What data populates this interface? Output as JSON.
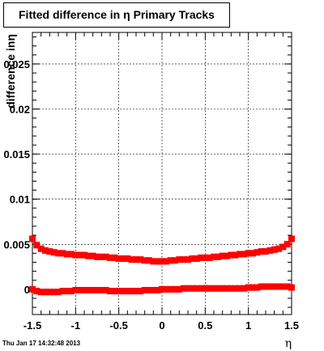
{
  "chart_data": {
    "type": "scatter",
    "title": "Fitted difference in η  Primary Tracks",
    "xlabel": "η",
    "ylabel": "difference inη",
    "xlim": [
      -1.5,
      1.5
    ],
    "ylim": [
      -0.0028,
      0.0285
    ],
    "x_ticks": [
      "-1.5",
      "-1",
      "-0.5",
      "0",
      "0.5",
      "1",
      "1.5"
    ],
    "y_ticks": [
      "0",
      "0.005",
      "0.01",
      "0.015",
      "0.02",
      "0.025"
    ],
    "grid": true,
    "series": [
      {
        "color": "#ff0000",
        "x": [
          -1.5,
          -1.45,
          -1.4,
          -1.35,
          -1.3,
          -1.25,
          -1.2,
          -1.15,
          -1.1,
          -1.05,
          -1.0,
          -0.95,
          -0.9,
          -0.85,
          -0.8,
          -0.75,
          -0.7,
          -0.65,
          -0.6,
          -0.55,
          -0.5,
          -0.45,
          -0.4,
          -0.35,
          -0.3,
          -0.25,
          -0.2,
          -0.15,
          -0.1,
          -0.05,
          0.0,
          0.05,
          0.1,
          0.15,
          0.2,
          0.25,
          0.3,
          0.35,
          0.4,
          0.45,
          0.5,
          0.55,
          0.6,
          0.65,
          0.7,
          0.75,
          0.8,
          0.85,
          0.9,
          0.95,
          1.0,
          1.05,
          1.1,
          1.15,
          1.2,
          1.25,
          1.3,
          1.35,
          1.4,
          1.45,
          1.5
        ],
        "y": [
          0.0056,
          0.0049,
          0.0045,
          0.0043,
          0.0042,
          0.0041,
          0.004,
          0.004,
          0.0039,
          0.0039,
          0.0038,
          0.0038,
          0.0038,
          0.0037,
          0.0037,
          0.0036,
          0.0036,
          0.0036,
          0.0035,
          0.0035,
          0.0034,
          0.0034,
          0.0034,
          0.0033,
          0.0033,
          0.0033,
          0.0032,
          0.0032,
          0.0031,
          0.0031,
          0.0031,
          0.0031,
          0.0032,
          0.0032,
          0.0033,
          0.0033,
          0.0033,
          0.0034,
          0.0034,
          0.0035,
          0.0035,
          0.0035,
          0.0036,
          0.0036,
          0.0037,
          0.0037,
          0.0038,
          0.0038,
          0.0039,
          0.0039,
          0.004,
          0.004,
          0.0041,
          0.0042,
          0.0042,
          0.0043,
          0.0044,
          0.0045,
          0.0047,
          0.005,
          0.0056
        ]
      },
      {
        "color": "#ff0000",
        "x": [
          -1.5,
          -1.45,
          -1.4,
          -1.35,
          -1.3,
          -1.25,
          -1.2,
          -1.15,
          -1.1,
          -1.05,
          -1.0,
          -0.95,
          -0.9,
          -0.85,
          -0.8,
          -0.75,
          -0.7,
          -0.65,
          -0.6,
          -0.55,
          -0.5,
          -0.45,
          -0.4,
          -0.35,
          -0.3,
          -0.25,
          -0.2,
          -0.15,
          -0.1,
          -0.05,
          0.0,
          0.05,
          0.1,
          0.15,
          0.2,
          0.25,
          0.3,
          0.35,
          0.4,
          0.45,
          0.5,
          0.55,
          0.6,
          0.65,
          0.7,
          0.75,
          0.8,
          0.85,
          0.9,
          0.95,
          1.0,
          1.05,
          1.1,
          1.15,
          1.2,
          1.25,
          1.3,
          1.35,
          1.4,
          1.45,
          1.5
        ],
        "y": [
          0.0,
          -0.0002,
          -0.0003,
          -0.0003,
          -0.0003,
          -0.0003,
          -0.0003,
          -0.0002,
          -0.0002,
          -0.0002,
          -0.0001,
          -0.0001,
          -0.0001,
          -0.0001,
          -0.0001,
          -0.0001,
          -0.0001,
          -0.0001,
          -0.0002,
          -0.0002,
          -0.0002,
          -0.0002,
          -0.0002,
          -0.0002,
          -0.0002,
          -0.0002,
          -0.0001,
          -0.0001,
          -0.0001,
          -0.0001,
          0.0,
          0.0,
          0.0,
          0.0,
          0.0,
          0.0001,
          0.0001,
          0.0001,
          0.0001,
          0.0001,
          0.0001,
          0.0001,
          0.0001,
          0.0001,
          0.0001,
          0.0001,
          0.0001,
          0.0001,
          0.0001,
          0.0001,
          0.0002,
          0.0002,
          0.0002,
          0.0003,
          0.0003,
          0.0003,
          0.0003,
          0.0003,
          0.0003,
          0.0003,
          0.0002
        ]
      }
    ]
  },
  "footer": {
    "timestamp": "Thu Jan 17 14:32:48 2013"
  }
}
